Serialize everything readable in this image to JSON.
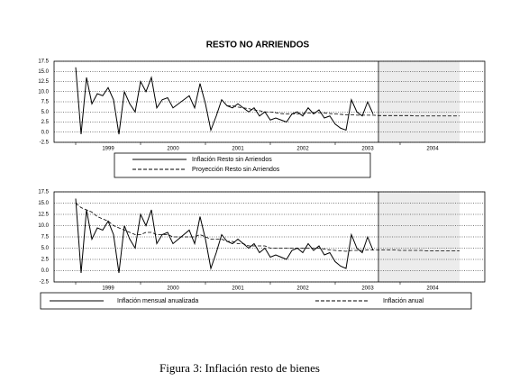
{
  "chart_data": [
    {
      "type": "line",
      "title": "RESTO NO ARRIENDOS",
      "categories": [
        null,
        null,
        null,
        null,
        null,
        null,
        "1999",
        null,
        null,
        null,
        null,
        null,
        null,
        null,
        null,
        null,
        null,
        null,
        "2000",
        null,
        null,
        null,
        null,
        null,
        null,
        null,
        null,
        null,
        null,
        null,
        "2001",
        null,
        null,
        null,
        null,
        null,
        null,
        null,
        null,
        null,
        null,
        null,
        "2002",
        null,
        null,
        null,
        null,
        null,
        null,
        null,
        null,
        null,
        null,
        null,
        "2003",
        null,
        null,
        null,
        null,
        null,
        null,
        null,
        null,
        null,
        null,
        null,
        "2004",
        null,
        null,
        null,
        null,
        null
      ],
      "ylim": [
        -2.5,
        17.5
      ],
      "yticks": [
        -2.5,
        {
          "value": 0,
          "label": "0.0"
        },
        2.5,
        {
          "value": 5,
          "label": "5.0"
        },
        7.5,
        {
          "value": 10,
          "label": "10.0"
        },
        12.5,
        {
          "value": 15,
          "label": "15.0"
        },
        17.5
      ],
      "grid": true,
      "series": [
        {
          "name": "Inflación Resto sin Arriendos",
          "color": "#000000",
          "dash": "solid",
          "values": [
            16,
            -0.5,
            13.5,
            7,
            9.5,
            9,
            11,
            8,
            -0.5,
            10,
            7,
            5,
            12.5,
            10,
            13.5,
            6,
            8,
            8.5,
            6,
            7,
            8,
            9,
            6,
            12,
            7,
            0.5,
            4,
            8,
            6.5,
            6,
            7,
            6,
            5,
            6,
            4,
            5,
            3,
            3.5,
            3,
            2.5,
            4.5,
            5,
            4,
            6,
            4.5,
            5.5,
            3.5,
            4,
            2,
            1,
            0.5,
            8,
            5,
            4,
            7.5,
            4.5,
            null,
            null,
            null,
            null,
            null,
            null,
            null,
            null,
            null,
            null,
            null,
            null,
            null,
            null,
            null,
            null
          ]
        },
        {
          "name": "Proyección Resto sin Arriendos",
          "color": "#000000",
          "dash": "dashed",
          "values": [
            null,
            null,
            null,
            null,
            null,
            null,
            null,
            null,
            null,
            null,
            null,
            null,
            null,
            null,
            null,
            null,
            null,
            null,
            null,
            null,
            null,
            null,
            null,
            null,
            null,
            null,
            null,
            null,
            6.5,
            6.5,
            6.2,
            6,
            5.8,
            5.5,
            5.3,
            5,
            5,
            4.8,
            4.6,
            4.5,
            4.5,
            4.5,
            4.6,
            4.7,
            4.8,
            4.8,
            4.7,
            4.6,
            4.5,
            4.4,
            4.3,
            4.3,
            4.2,
            4.2,
            4.2,
            4.2,
            4.1,
            4.1,
            4.1,
            4.1,
            4.1,
            4.1,
            4.1,
            4,
            4,
            4,
            4,
            4,
            4,
            4,
            4,
            4
          ]
        }
      ]
    },
    {
      "type": "line",
      "categories": [
        null,
        null,
        null,
        null,
        null,
        null,
        "1999",
        null,
        null,
        null,
        null,
        null,
        null,
        null,
        null,
        null,
        null,
        null,
        "2000",
        null,
        null,
        null,
        null,
        null,
        null,
        null,
        null,
        null,
        null,
        null,
        "2001",
        null,
        null,
        null,
        null,
        null,
        null,
        null,
        null,
        null,
        null,
        null,
        "2002",
        null,
        null,
        null,
        null,
        null,
        null,
        null,
        null,
        null,
        null,
        null,
        "2003",
        null,
        null,
        null,
        null,
        null,
        null,
        null,
        null,
        null,
        null,
        null,
        "2004",
        null,
        null,
        null,
        null,
        null
      ],
      "ylim": [
        -2.5,
        17.5
      ],
      "yticks": [
        -2.5,
        {
          "value": 0,
          "label": "0.0"
        },
        2.5,
        {
          "value": 5,
          "label": "5.0"
        },
        7.5,
        {
          "value": 10,
          "label": "10.0"
        },
        12.5,
        {
          "value": 15,
          "label": "15.0"
        },
        17.5
      ],
      "grid": true,
      "series": [
        {
          "name": "Inflación mensual anualizada",
          "color": "#000000",
          "dash": "solid",
          "values": [
            16,
            -0.5,
            13.5,
            7,
            9.5,
            9,
            11,
            8,
            -0.5,
            10,
            7,
            5,
            12.5,
            10,
            13.5,
            6,
            8,
            8.5,
            6,
            7,
            8,
            9,
            6,
            12,
            7,
            0.5,
            4,
            8,
            6.5,
            6,
            7,
            6,
            5,
            6,
            4,
            5,
            3,
            3.5,
            3,
            2.5,
            4.5,
            5,
            4,
            6,
            4.5,
            5.5,
            3.5,
            4,
            2,
            1,
            0.5,
            8,
            5,
            4,
            7.5,
            4.5,
            null,
            null,
            null,
            null,
            null,
            null,
            null,
            null,
            null,
            null,
            null,
            null,
            null,
            null,
            null,
            null
          ]
        },
        {
          "name": "Inflación anual",
          "color": "#000000",
          "dash": "dashed",
          "values": [
            15,
            14,
            13.5,
            13,
            12,
            11.5,
            11,
            10,
            9.5,
            9,
            8.5,
            8,
            8,
            8.5,
            8.5,
            8,
            8,
            8,
            7.5,
            7.5,
            7.5,
            7.5,
            7.5,
            8,
            7.5,
            7,
            7,
            7,
            6.5,
            6.5,
            6,
            6,
            5.5,
            5.5,
            5.5,
            5.5,
            5,
            5,
            5,
            5,
            5,
            5,
            5,
            5,
            5,
            5,
            4.8,
            4.6,
            4.5,
            4.4,
            4.3,
            4.5,
            4.5,
            4.5,
            4.6,
            4.6,
            4.6,
            4.6,
            4.6,
            4.6,
            4.5,
            4.5,
            4.5,
            4.5,
            4.5,
            4.4,
            4.4,
            4.4,
            4.4,
            4.4,
            4.4,
            4.4
          ]
        }
      ]
    }
  ],
  "caption": "Figura 3: Inflación resto de bienes"
}
